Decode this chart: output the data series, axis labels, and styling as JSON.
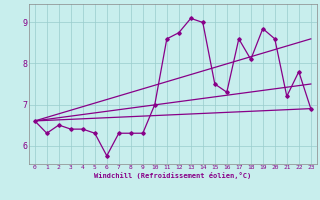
{
  "xlabel": "Windchill (Refroidissement éolien,°C)",
  "background_color": "#c8eeed",
  "line_color": "#880088",
  "grid_color": "#99cccc",
  "x_ticks": [
    0,
    1,
    2,
    3,
    4,
    5,
    6,
    7,
    8,
    9,
    10,
    11,
    12,
    13,
    14,
    15,
    16,
    17,
    18,
    19,
    20,
    21,
    22,
    23
  ],
  "y_ticks": [
    6,
    7,
    8,
    9
  ],
  "ylim": [
    5.55,
    9.45
  ],
  "xlim": [
    -0.5,
    23.5
  ],
  "series1_x": [
    0,
    1,
    2,
    3,
    4,
    5,
    6,
    7,
    8,
    9,
    10,
    11,
    12,
    13,
    14,
    15,
    16,
    17,
    18,
    19,
    20,
    21,
    22,
    23
  ],
  "series1_y": [
    6.6,
    6.3,
    6.5,
    6.4,
    6.4,
    6.3,
    5.75,
    6.3,
    6.3,
    6.3,
    7.0,
    8.6,
    8.75,
    9.1,
    9.0,
    7.5,
    7.3,
    8.6,
    8.1,
    8.85,
    8.6,
    7.2,
    7.8,
    6.9
  ],
  "series2_x": [
    0,
    23
  ],
  "series2_y": [
    6.6,
    8.6
  ],
  "series3_x": [
    0,
    23
  ],
  "series3_y": [
    6.6,
    7.5
  ],
  "series4_x": [
    0,
    23
  ],
  "series4_y": [
    6.6,
    6.9
  ],
  "marker": "D",
  "markersize": 1.8,
  "linewidth": 0.9
}
